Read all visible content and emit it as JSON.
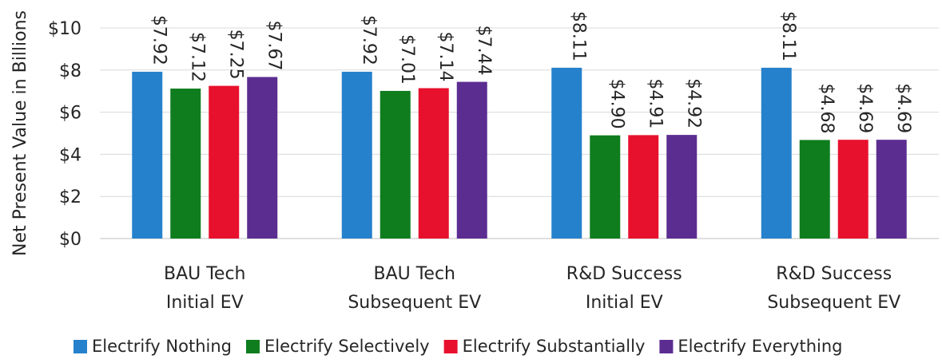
{
  "chart_data": {
    "type": "bar",
    "ylabel": "Net Present Value in Billions",
    "ylim": [
      0,
      10
    ],
    "yticks": [
      "$0",
      "$2",
      "$4",
      "$6",
      "$8",
      "$10"
    ],
    "categories": [
      [
        "BAU Tech",
        "Initial EV"
      ],
      [
        "BAU Tech",
        "Subsequent EV"
      ],
      [
        "R&D Success",
        "Initial EV"
      ],
      [
        "R&D Success",
        "Subsequent EV"
      ]
    ],
    "series": [
      {
        "name": "Electrify Nothing",
        "color": "#2681CC",
        "values": [
          7.92,
          7.92,
          8.11,
          8.11
        ],
        "labels": [
          "$7.92",
          "$7.92",
          "$8.11",
          "$8.11"
        ]
      },
      {
        "name": "Electrify Selectively",
        "color": "#0F7D1E",
        "values": [
          7.12,
          7.01,
          4.9,
          4.68
        ],
        "labels": [
          "$7.12",
          "$7.01",
          "$4.90",
          "$4.68"
        ]
      },
      {
        "name": "Electrify Substantially",
        "color": "#E8112D",
        "values": [
          7.25,
          7.14,
          4.91,
          4.69
        ],
        "labels": [
          "$7.25",
          "$7.14",
          "$4.91",
          "$4.69"
        ]
      },
      {
        "name": "Electrify Everything",
        "color": "#5C2D91",
        "values": [
          7.67,
          7.44,
          4.92,
          4.69
        ],
        "labels": [
          "$7.67",
          "$7.44",
          "$4.92",
          "$4.69"
        ]
      }
    ],
    "grid": true,
    "legend": "bottom"
  }
}
